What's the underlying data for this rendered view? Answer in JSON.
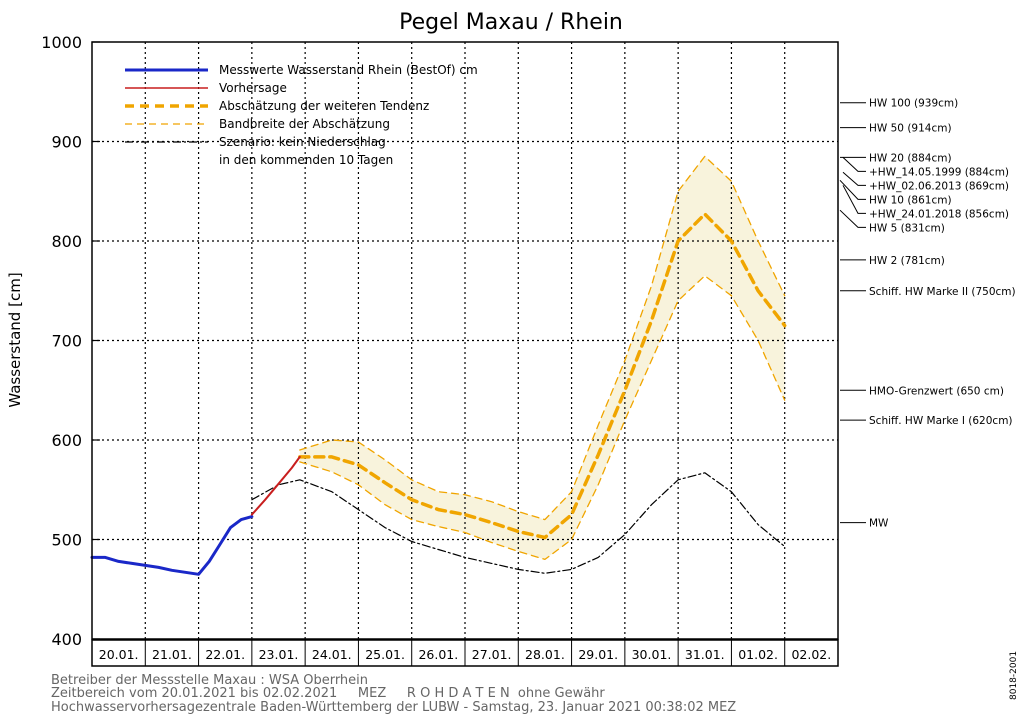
{
  "chart_data": {
    "type": "line",
    "title": "Pegel Maxau / Rhein",
    "ylabel": "Wasserstand [cm]",
    "xlabel": "",
    "ylim": [
      400,
      1000
    ],
    "yticks": [
      400,
      500,
      600,
      700,
      800,
      900,
      1000
    ],
    "xlim_days": [
      0,
      14
    ],
    "x_tick_labels": [
      "20.01.",
      "21.01.",
      "22.01.",
      "23.01.",
      "24.01.",
      "25.01.",
      "26.01.",
      "27.01.",
      "28.01.",
      "29.01.",
      "30.01.",
      "31.01.",
      "01.02.",
      "02.02."
    ],
    "grid": true,
    "legend": {
      "placement": "top-left",
      "entries": [
        {
          "label": "Messwerte Wasserstand Rhein (BestOf)  cm",
          "style": "blue-solid"
        },
        {
          "label": "Vorhersage",
          "style": "red-solid"
        },
        {
          "label": "Abschätzung der weiteren Tendenz",
          "style": "orange-dashed"
        },
        {
          "label": "Bandbreite der Abschätzung",
          "style": "orange-thin-dashed"
        },
        {
          "label": "Szenario: kein Niederschlag",
          "style": "black-dashdot"
        },
        {
          "label": "in den kommenden 10 Tagen",
          "style": "none"
        }
      ]
    },
    "series": [
      {
        "name": "Messwerte Wasserstand Rhein (BestOf)",
        "color": "#1a28c8",
        "x": [
          0,
          0.25,
          0.5,
          0.75,
          1.0,
          1.25,
          1.5,
          1.75,
          2.0,
          2.2,
          2.4,
          2.6,
          2.8,
          3.0
        ],
        "y": [
          482,
          482,
          478,
          476,
          474,
          472,
          469,
          467,
          465,
          478,
          495,
          512,
          520,
          523
        ]
      },
      {
        "name": "Vorhersage",
        "color": "#c81e1e",
        "x": [
          3.0,
          3.25,
          3.5,
          3.75,
          3.9
        ],
        "y": [
          525,
          540,
          556,
          572,
          583
        ]
      },
      {
        "name": "Abschätzung der weiteren Tendenz",
        "color": "#f0a500",
        "x": [
          3.9,
          4.5,
          5.0,
          5.5,
          6.0,
          6.5,
          7.0,
          7.5,
          8.0,
          8.5,
          9.0,
          9.5,
          10.0,
          10.5,
          11.0,
          11.5,
          12.0,
          12.5,
          13.0
        ],
        "y": [
          583,
          583,
          575,
          557,
          540,
          530,
          525,
          517,
          508,
          502,
          525,
          585,
          650,
          720,
          800,
          827,
          800,
          750,
          715
        ]
      },
      {
        "name": "Bandbreite der Abschätzung (oben)",
        "color": "#f0a500",
        "x": [
          3.9,
          4.5,
          5.0,
          5.5,
          6.0,
          6.5,
          7.0,
          7.5,
          8.0,
          8.5,
          9.0,
          9.5,
          10.0,
          10.5,
          11.0,
          11.5,
          12.0,
          12.5,
          13.0
        ],
        "y": [
          590,
          600,
          598,
          580,
          560,
          548,
          545,
          538,
          528,
          520,
          548,
          615,
          680,
          755,
          850,
          885,
          860,
          800,
          745
        ]
      },
      {
        "name": "Bandbreite der Abschätzung (unten)",
        "color": "#f0a500",
        "x": [
          3.9,
          4.5,
          5.0,
          5.5,
          6.0,
          6.5,
          7.0,
          7.5,
          8.0,
          8.5,
          9.0,
          9.5,
          10.0,
          10.5,
          11.0,
          11.5,
          12.0,
          12.5,
          13.0
        ],
        "y": [
          578,
          568,
          555,
          535,
          520,
          513,
          507,
          497,
          488,
          480,
          500,
          555,
          620,
          680,
          740,
          765,
          745,
          700,
          640
        ]
      },
      {
        "name": "Szenario: kein Niederschlag",
        "color": "#000000",
        "x": [
          3.0,
          3.5,
          3.9,
          4.5,
          5.0,
          5.5,
          6.0,
          6.5,
          7.0,
          7.5,
          8.0,
          8.5,
          9.0,
          9.5,
          10.0,
          10.5,
          11.0,
          11.5,
          12.0,
          12.5,
          13.0
        ],
        "y": [
          540,
          555,
          560,
          548,
          530,
          512,
          498,
          490,
          482,
          476,
          470,
          466,
          470,
          482,
          505,
          535,
          560,
          567,
          548,
          515,
          493
        ]
      }
    ],
    "reference_marks": [
      {
        "label": "HW 100 (939cm)",
        "value": 939
      },
      {
        "label": "HW 50 (914cm)",
        "value": 914
      },
      {
        "label": "HW 20 (884cm)",
        "value": 884
      },
      {
        "label": "+HW_14.05.1999 (884cm)",
        "value": 884
      },
      {
        "label": "+HW_02.06.2013 (869cm)",
        "value": 869
      },
      {
        "label": "HW 10 (861cm)",
        "value": 861
      },
      {
        "label": "+HW_24.01.2018 (856cm)",
        "value": 856
      },
      {
        "label": "HW 5 (831cm)",
        "value": 831
      },
      {
        "label": "HW 2 (781cm)",
        "value": 781
      },
      {
        "label": "Schiff. HW Marke II (750cm)",
        "value": 750
      },
      {
        "label": "HMO-Grenzwert (650 cm)",
        "value": 650
      },
      {
        "label": "Schiff. HW Marke I (620cm)",
        "value": 620
      },
      {
        "label": "MW",
        "value": 517
      }
    ]
  },
  "footer": {
    "line1": "Betreiber der Messstelle Maxau : WSA Oberrhein",
    "line2": "Zeitbereich vom 20.01.2021 bis 02.02.2021     MEZ     R O H D A T E N  ohne Gewähr",
    "line3": "Hochwasservorhersagezentrale Baden-Württemberg der LUBW - Samstag, 23. Januar 2021 00:38:02 MEZ"
  },
  "side_code": "8018-2001",
  "colors": {
    "measured": "#1a28c8",
    "forecast": "#c81e1e",
    "tendency": "#f0a500",
    "band_fill": "#f8f3dc",
    "scenario": "#000000"
  }
}
